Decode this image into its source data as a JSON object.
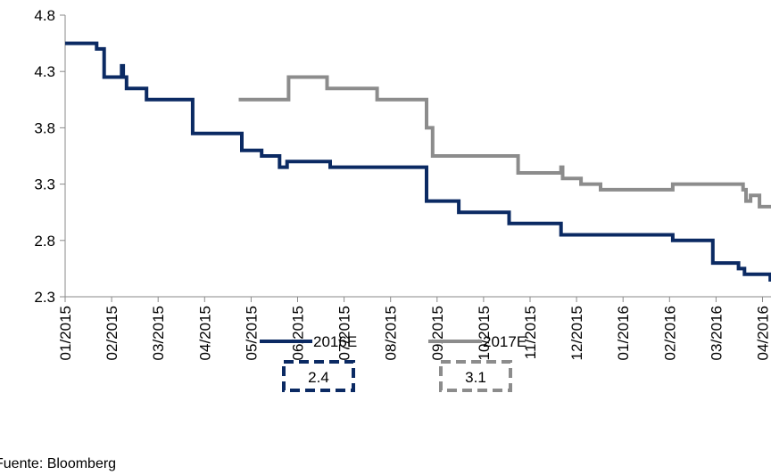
{
  "source_note": "Fuente: Bloomberg",
  "callouts": [
    {
      "series": "2016E",
      "value": "2.4",
      "color": "#0b2a63"
    },
    {
      "series": "2017E",
      "value": "3.1",
      "color": "#8c8c8c"
    }
  ],
  "chart_data": {
    "type": "line",
    "title": "",
    "xlabel": "",
    "ylabel": "",
    "ylim": [
      2.3,
      4.8
    ],
    "yticks": [
      "2.3",
      "2.8",
      "3.3",
      "3.8",
      "4.3",
      "4.8"
    ],
    "x_tick_labels": [
      "01/2015",
      "02/2015",
      "03/2015",
      "04/2015",
      "05/2015",
      "06/2015",
      "07/2015",
      "08/2015",
      "09/2015",
      "10/2015",
      "11/2015",
      "12/2015",
      "01/2016",
      "02/2016",
      "03/2016",
      "04/2016"
    ],
    "grid": false,
    "legend": "bottom",
    "series": [
      {
        "name": "2016E",
        "color": "#0b2a63",
        "step": true,
        "x": [
          "2015-01-01",
          "2015-01-22",
          "2015-01-27",
          "2015-02-07",
          "2015-02-08",
          "2015-02-10",
          "2015-02-22",
          "2015-03-24",
          "2015-04-25",
          "2015-05-08",
          "2015-05-18",
          "2015-05-20",
          "2015-05-25",
          "2015-06-22",
          "2015-08-25",
          "2015-09-15",
          "2015-10-18",
          "2015-11-21",
          "2015-12-14",
          "2016-02-03",
          "2016-02-28",
          "2016-03-16",
          "2016-03-20",
          "2016-03-27",
          "2016-04-06"
        ],
        "values": [
          4.55,
          4.5,
          4.25,
          4.35,
          4.25,
          4.15,
          4.05,
          3.75,
          3.6,
          3.55,
          3.55,
          3.45,
          3.5,
          3.45,
          3.15,
          3.05,
          2.95,
          2.85,
          2.85,
          2.8,
          2.6,
          2.55,
          2.5,
          2.5,
          2.45
        ]
      },
      {
        "name": "2017E",
        "color": "#8c8c8c",
        "step": true,
        "x": [
          "2015-04-23",
          "2015-05-26",
          "2015-06-20",
          "2015-07-23",
          "2015-08-25",
          "2015-08-29",
          "2015-10-24",
          "2015-11-21",
          "2015-11-22",
          "2015-12-04",
          "2015-12-17",
          "2016-02-03",
          "2016-02-19",
          "2016-03-19",
          "2016-03-21",
          "2016-03-24",
          "2016-03-30"
        ],
        "values": [
          4.05,
          4.25,
          4.15,
          4.05,
          3.8,
          3.55,
          3.4,
          3.45,
          3.35,
          3.3,
          3.25,
          3.3,
          3.3,
          3.25,
          3.15,
          3.2,
          3.1
        ]
      }
    ]
  }
}
